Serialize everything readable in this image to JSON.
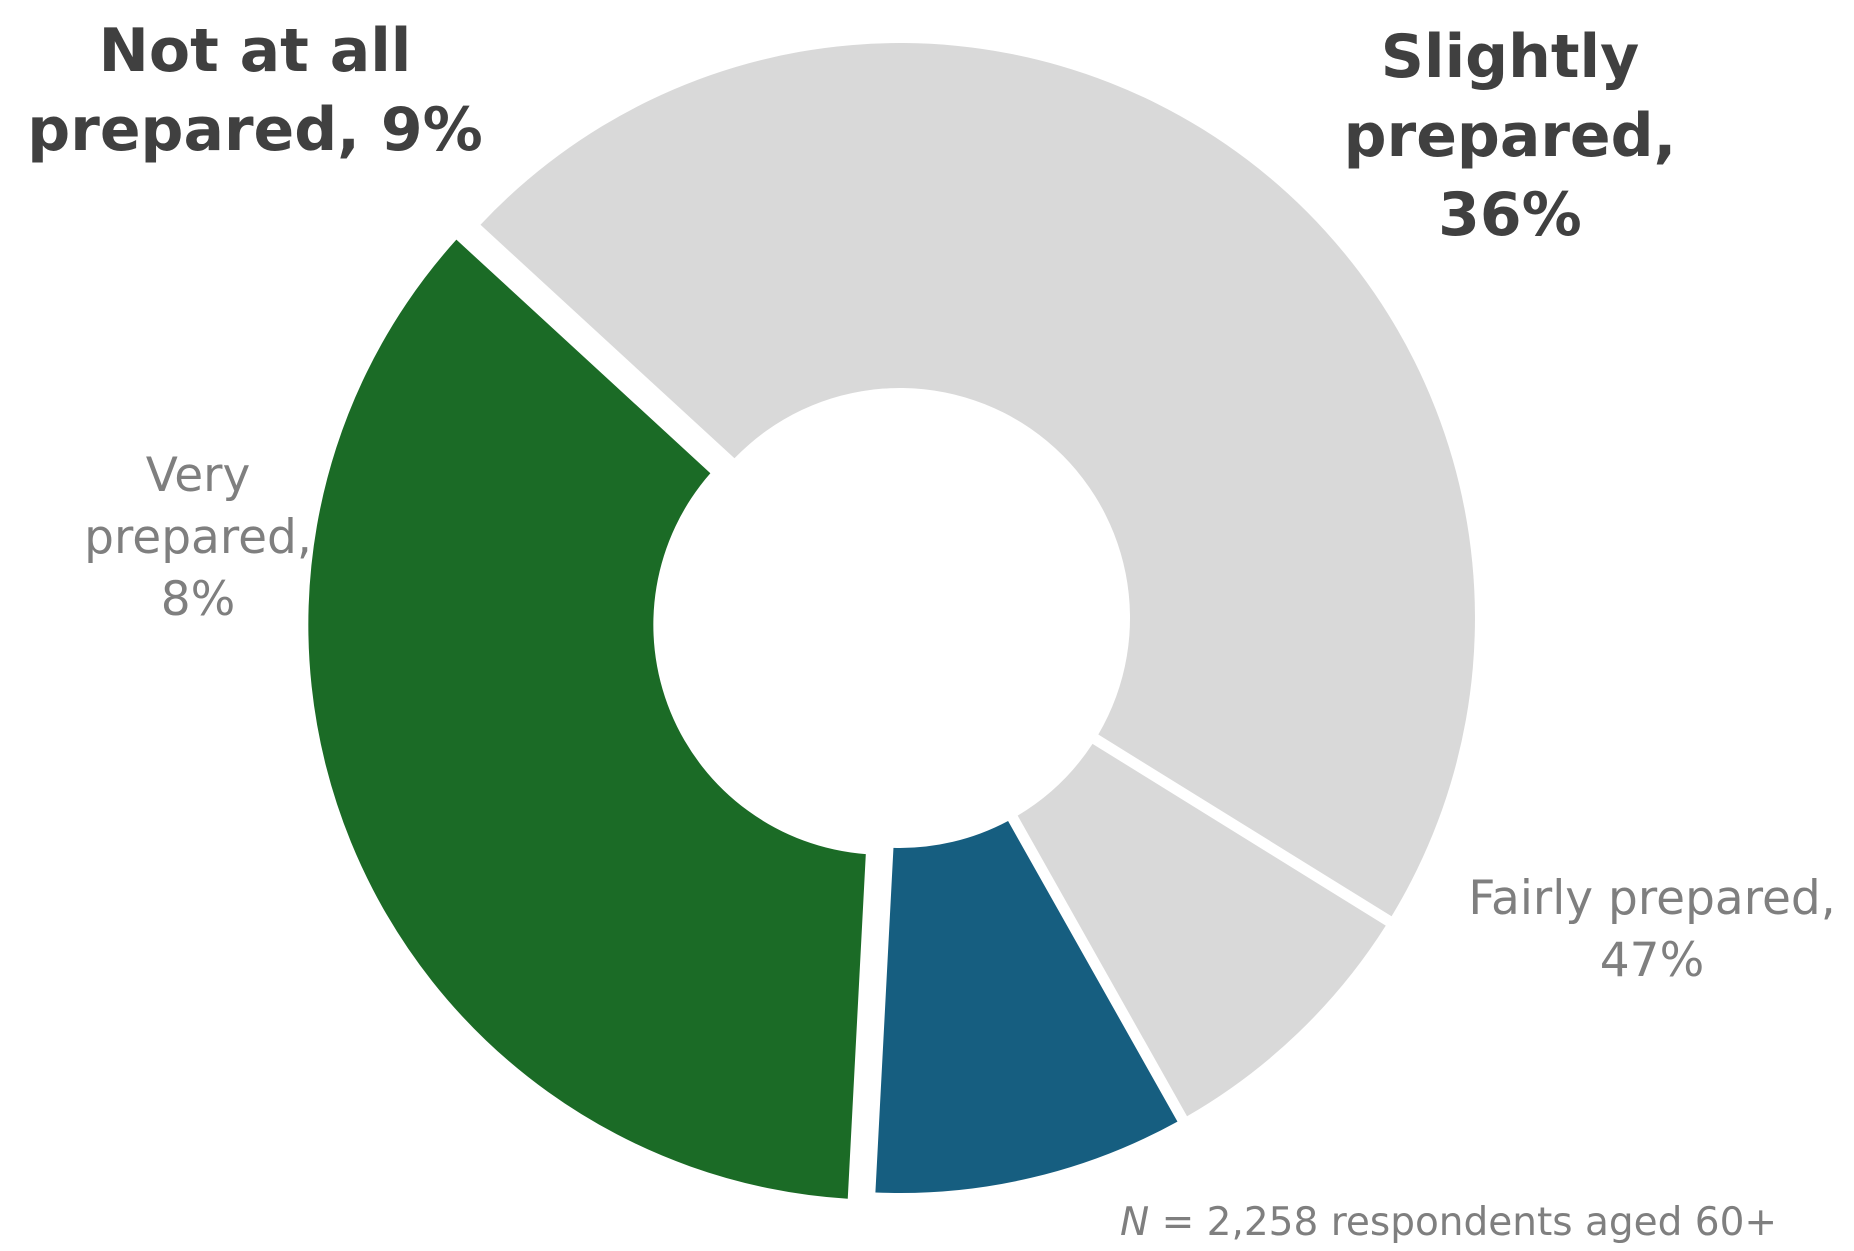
{
  "chart_data": {
    "type": "pie",
    "variant": "donut",
    "slices": [
      {
        "name": "Slightly prepared",
        "value": 36,
        "label_lines": [
          "Slightly",
          "prepared,",
          "36%"
        ],
        "color": "#1b6b26",
        "emphasis": true,
        "exploded": true
      },
      {
        "name": "Fairly prepared",
        "value": 47,
        "label_lines": [
          "Fairly prepared,",
          "47%"
        ],
        "color": "#d9d9d9",
        "emphasis": false,
        "exploded": false
      },
      {
        "name": "Very prepared",
        "value": 8,
        "label_lines": [
          "Very",
          "prepared,",
          "8%"
        ],
        "color": "#d9d9d9",
        "emphasis": false,
        "exploded": false
      },
      {
        "name": "Not at all prepared",
        "value": 9,
        "label_lines": [
          "Not at all",
          "prepared, 9%"
        ],
        "color": "#165e80",
        "emphasis": true,
        "exploded": false
      }
    ],
    "footnote": {
      "n_symbol": "N",
      "text": " = 2,258 respondents aged 60+"
    },
    "legend": "none",
    "label_color_emphasis": "#404040",
    "label_color_muted": "#7f7f7f"
  }
}
